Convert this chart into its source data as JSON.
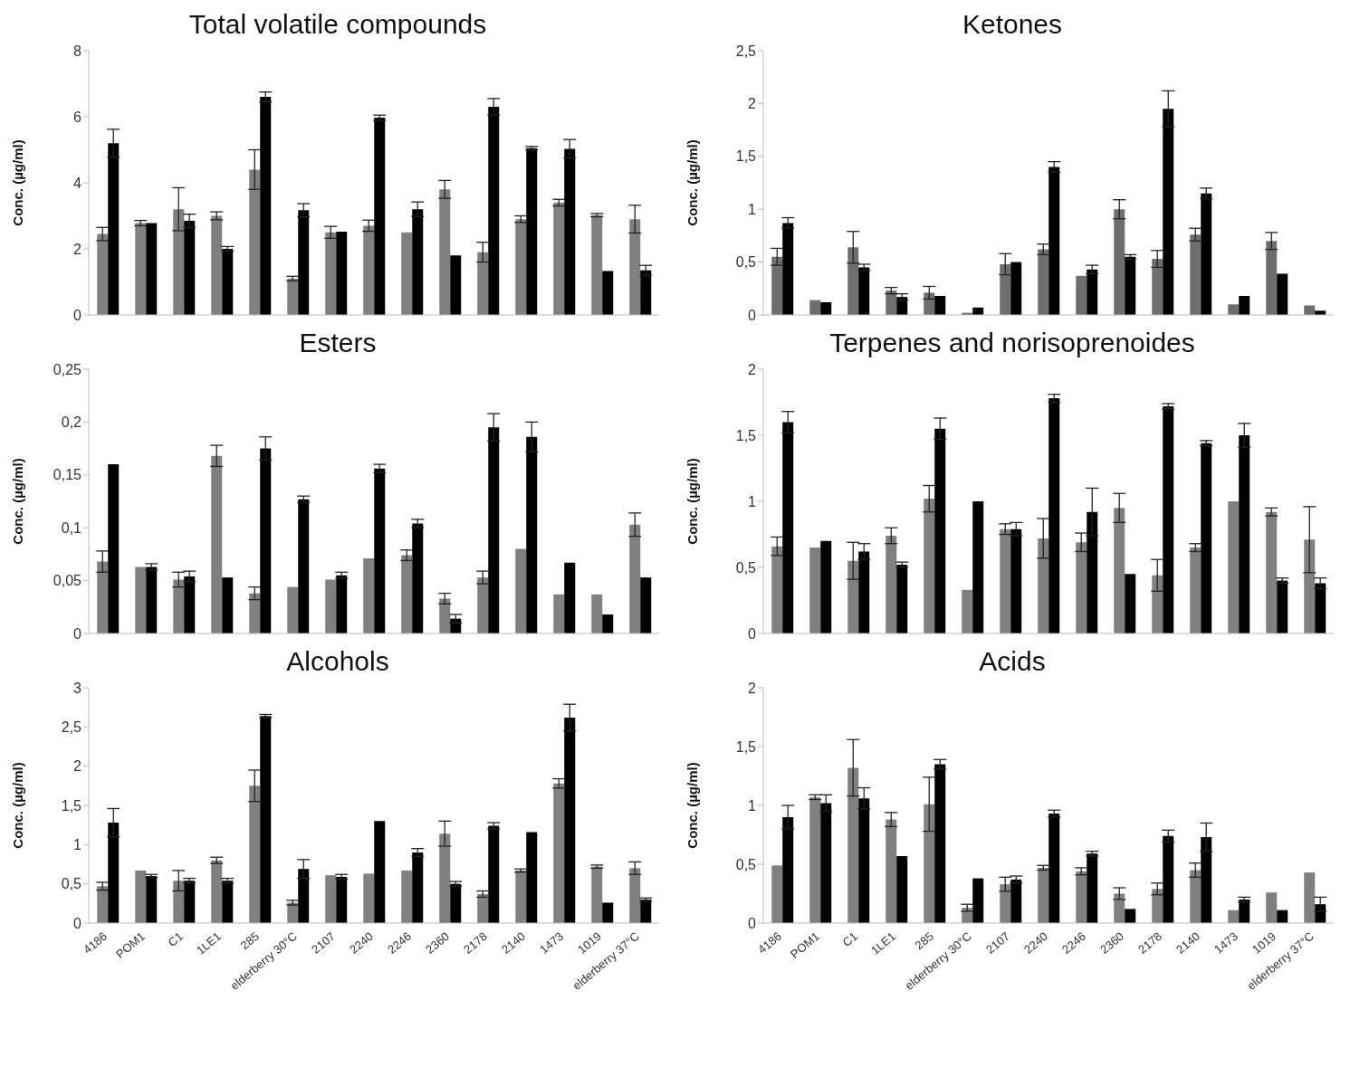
{
  "chart_data": [
    {
      "type": "bar",
      "title": "Total volatile compounds",
      "ylabel": "Conc. (µg/ml)",
      "categories": [
        null,
        null,
        null,
        null,
        null,
        null,
        null,
        null,
        null,
        null,
        null,
        null,
        null,
        null,
        null
      ],
      "ylim": [
        0,
        8
      ],
      "yticks": [
        0,
        2,
        4,
        6,
        8
      ],
      "tick_labels": "y",
      "series": [
        {
          "color": "#808080",
          "values": [
            2.45,
            2.78,
            3.2,
            3.0,
            4.4,
            1.1,
            2.5,
            2.7,
            2.5,
            3.8,
            1.9,
            2.9,
            3.4,
            3.02,
            2.9
          ],
          "errors": [
            0.2,
            0.08,
            0.65,
            0.12,
            0.6,
            0.07,
            0.18,
            0.17,
            null,
            0.27,
            0.3,
            0.1,
            0.1,
            0.05,
            0.42
          ]
        },
        {
          "color": "#000000",
          "values": [
            5.2,
            2.78,
            2.85,
            2.0,
            6.6,
            3.17,
            2.52,
            5.97,
            3.2,
            1.8,
            6.3,
            5.05,
            5.03,
            1.33,
            1.35
          ],
          "errors": [
            0.42,
            null,
            0.2,
            0.07,
            0.15,
            0.2,
            null,
            0.08,
            0.22,
            null,
            0.25,
            0.05,
            0.28,
            null,
            0.15
          ]
        }
      ]
    },
    {
      "type": "bar",
      "title": "Ketones",
      "ylabel": "Conc. (µg/ml)",
      "categories": [
        null,
        null,
        null,
        null,
        null,
        null,
        null,
        null,
        null,
        null,
        null,
        null,
        null,
        null,
        null
      ],
      "ylim": [
        0,
        2.5
      ],
      "yticks": [
        0,
        {
          "value": 0.5,
          "label": "0,5"
        },
        1,
        {
          "value": 1.5,
          "label": "1,5"
        },
        2,
        {
          "value": 2.5,
          "label": "2,5"
        }
      ],
      "tick_labels": "y",
      "series": [
        {
          "color": "#6e6e6e",
          "values": [
            0.55,
            0.14,
            0.64,
            0.23,
            0.21,
            0.02,
            0.48,
            0.62,
            0.37,
            1.0,
            0.53,
            0.76,
            0.1,
            0.7,
            0.09
          ],
          "errors": [
            0.08,
            null,
            0.15,
            0.03,
            0.06,
            null,
            0.1,
            0.05,
            null,
            0.09,
            0.08,
            0.06,
            null,
            0.08,
            null
          ]
        },
        {
          "color": "#000000",
          "values": [
            0.87,
            0.12,
            0.45,
            0.17,
            0.18,
            0.07,
            0.5,
            1.4,
            0.43,
            0.55,
            1.95,
            1.15,
            0.18,
            0.39,
            0.04
          ],
          "errors": [
            0.05,
            null,
            0.03,
            0.03,
            null,
            null,
            null,
            0.05,
            0.04,
            0.02,
            0.17,
            0.05,
            null,
            null,
            null
          ]
        }
      ]
    },
    {
      "type": "bar",
      "title": "Esters",
      "ylabel": "Conc. (µg/ml)",
      "categories": [
        null,
        null,
        null,
        null,
        null,
        null,
        null,
        null,
        null,
        null,
        null,
        null,
        null,
        null,
        null
      ],
      "ylim": [
        0,
        0.25
      ],
      "yticks": [
        0,
        {
          "value": 0.05,
          "label": "0,05"
        },
        {
          "value": 0.1,
          "label": "0,1"
        },
        {
          "value": 0.15,
          "label": "0,15"
        },
        {
          "value": 0.2,
          "label": "0,2"
        },
        {
          "value": 0.25,
          "label": "0,25"
        }
      ],
      "tick_labels": "y",
      "series": [
        {
          "color": "#808080",
          "values": [
            0.068,
            0.063,
            0.051,
            0.168,
            0.038,
            0.044,
            0.051,
            0.071,
            0.074,
            0.033,
            0.053,
            0.08,
            0.037,
            0.037,
            0.103
          ],
          "errors": [
            0.01,
            null,
            0.007,
            0.01,
            0.006,
            null,
            null,
            null,
            0.005,
            0.005,
            0.006,
            null,
            null,
            null,
            0.011
          ]
        },
        {
          "color": "#000000",
          "values": [
            0.16,
            0.063,
            0.054,
            0.053,
            0.175,
            0.127,
            0.055,
            0.156,
            0.104,
            0.014,
            0.195,
            0.186,
            0.067,
            0.018,
            0.053
          ],
          "errors": [
            null,
            0.003,
            0.005,
            null,
            0.011,
            0.003,
            0.003,
            0.004,
            0.004,
            0.004,
            0.013,
            0.014,
            null,
            null,
            null
          ]
        }
      ]
    },
    {
      "type": "bar",
      "title": "Terpenes and norisoprenoides",
      "ylabel": "Conc. (µg/ml)",
      "categories": [
        null,
        null,
        null,
        null,
        null,
        null,
        null,
        null,
        null,
        null,
        null,
        null,
        null,
        null,
        null
      ],
      "ylim": [
        0,
        2
      ],
      "yticks": [
        0,
        {
          "value": 0.5,
          "label": "0,5"
        },
        1,
        {
          "value": 1.5,
          "label": "1,5"
        },
        2
      ],
      "tick_labels": "y",
      "series": [
        {
          "color": "#808080",
          "values": [
            0.66,
            0.65,
            0.55,
            0.74,
            1.02,
            0.33,
            0.79,
            0.72,
            0.69,
            0.95,
            0.44,
            0.65,
            1.0,
            0.92,
            0.71
          ],
          "errors": [
            0.07,
            null,
            0.14,
            0.06,
            0.1,
            null,
            0.04,
            0.15,
            0.07,
            0.11,
            0.12,
            0.03,
            null,
            0.03,
            0.25
          ]
        },
        {
          "color": "#000000",
          "values": [
            1.6,
            0.7,
            0.62,
            0.52,
            1.55,
            1.0,
            0.79,
            1.78,
            0.92,
            0.45,
            1.72,
            1.44,
            1.5,
            0.4,
            0.38
          ],
          "errors": [
            0.08,
            null,
            0.06,
            0.02,
            0.08,
            null,
            0.05,
            0.03,
            0.18,
            null,
            0.02,
            0.02,
            0.09,
            0.02,
            0.04
          ]
        }
      ]
    },
    {
      "type": "bar",
      "title": "Alcohols",
      "ylabel": "Conc. (µg/ml)",
      "categories": [
        "4186",
        "POM1",
        "C1",
        "1LE1",
        "285",
        "elderberry 30°C",
        "2107",
        "2240",
        "2246",
        "2360",
        "2178",
        "2140",
        "1473",
        "1019",
        "elderberry 37°C"
      ],
      "ylim": [
        0,
        3
      ],
      "yticks": [
        0,
        {
          "value": 0.5,
          "label": "0,5"
        },
        1,
        {
          "value": 1.5,
          "label": "1,5"
        },
        2,
        {
          "value": 2.5,
          "label": "2,5"
        },
        3
      ],
      "series": [
        {
          "color": "#808080",
          "values": [
            0.47,
            0.67,
            0.54,
            0.8,
            1.75,
            0.26,
            0.61,
            0.63,
            0.67,
            1.14,
            0.37,
            0.67,
            1.78,
            0.72,
            0.7
          ],
          "errors": [
            0.05,
            null,
            0.13,
            0.04,
            0.2,
            0.03,
            null,
            null,
            null,
            0.16,
            0.04,
            0.02,
            0.06,
            0.02,
            0.08
          ]
        },
        {
          "color": "#000000",
          "values": [
            1.28,
            0.6,
            0.54,
            0.54,
            2.64,
            0.69,
            0.59,
            1.3,
            0.9,
            0.5,
            1.24,
            1.16,
            2.62,
            0.26,
            0.3
          ],
          "errors": [
            0.18,
            0.02,
            0.03,
            0.03,
            0.02,
            0.12,
            0.03,
            null,
            0.05,
            0.03,
            0.04,
            null,
            0.17,
            null,
            0.02
          ]
        }
      ]
    },
    {
      "type": "bar",
      "title": "Acids",
      "ylabel": "Conc. (µg/ml)",
      "categories": [
        "4186",
        "POM1",
        "C1",
        "1LE1",
        "285",
        "elderberry 30°C",
        "2107",
        "2240",
        "2246",
        "2360",
        "2178",
        "2140",
        "1473",
        "1019",
        "elderberry 37°C"
      ],
      "ylim": [
        0,
        2
      ],
      "yticks": [
        0,
        {
          "value": 0.5,
          "label": "0,5"
        },
        1,
        {
          "value": 1.5,
          "label": "1,5"
        },
        2
      ],
      "series": [
        {
          "color": "#808080",
          "values": [
            0.49,
            1.07,
            1.32,
            0.88,
            1.01,
            0.13,
            0.33,
            0.47,
            0.44,
            0.25,
            0.29,
            0.45,
            0.11,
            0.26,
            0.43
          ],
          "errors": [
            null,
            0.02,
            0.24,
            0.06,
            0.23,
            0.03,
            0.06,
            0.02,
            0.03,
            0.05,
            0.05,
            0.06,
            null,
            null,
            null
          ]
        },
        {
          "color": "#000000",
          "values": [
            0.9,
            1.02,
            1.06,
            0.57,
            1.35,
            0.38,
            0.37,
            0.93,
            0.59,
            0.12,
            0.74,
            0.73,
            0.2,
            0.11,
            0.16
          ],
          "errors": [
            0.1,
            0.07,
            0.09,
            null,
            0.04,
            null,
            0.03,
            0.03,
            0.02,
            null,
            0.05,
            0.12,
            0.02,
            null,
            0.06
          ]
        }
      ]
    }
  ]
}
